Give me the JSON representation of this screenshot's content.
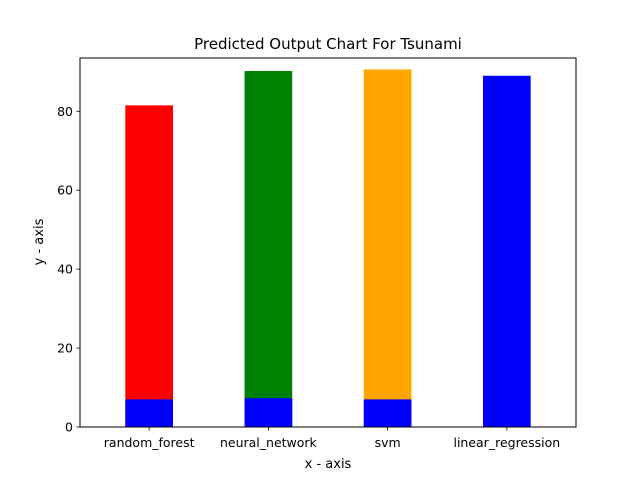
{
  "chart_data": {
    "type": "bar",
    "title": "Predicted Output Chart For Tsunami",
    "xlabel": "x - axis",
    "ylabel": "y - axis",
    "ylim": [
      0,
      93.5
    ],
    "yticks": [
      0,
      20,
      40,
      60,
      80
    ],
    "grid": false,
    "legend": "none",
    "categories": [
      "random_forest",
      "neural_network",
      "svm",
      "linear_regression"
    ],
    "series": [
      {
        "values": [
          81.5,
          90.2,
          90.6,
          89.0
        ],
        "colors": [
          "#ff0000",
          "#008000",
          "#ffa500",
          "#0000ff"
        ]
      },
      {
        "values": [
          7.0,
          7.3,
          7.0,
          0
        ],
        "colors": [
          "#0000ff",
          "#0000ff",
          "#0000ff",
          "#0000ff"
        ]
      }
    ]
  }
}
